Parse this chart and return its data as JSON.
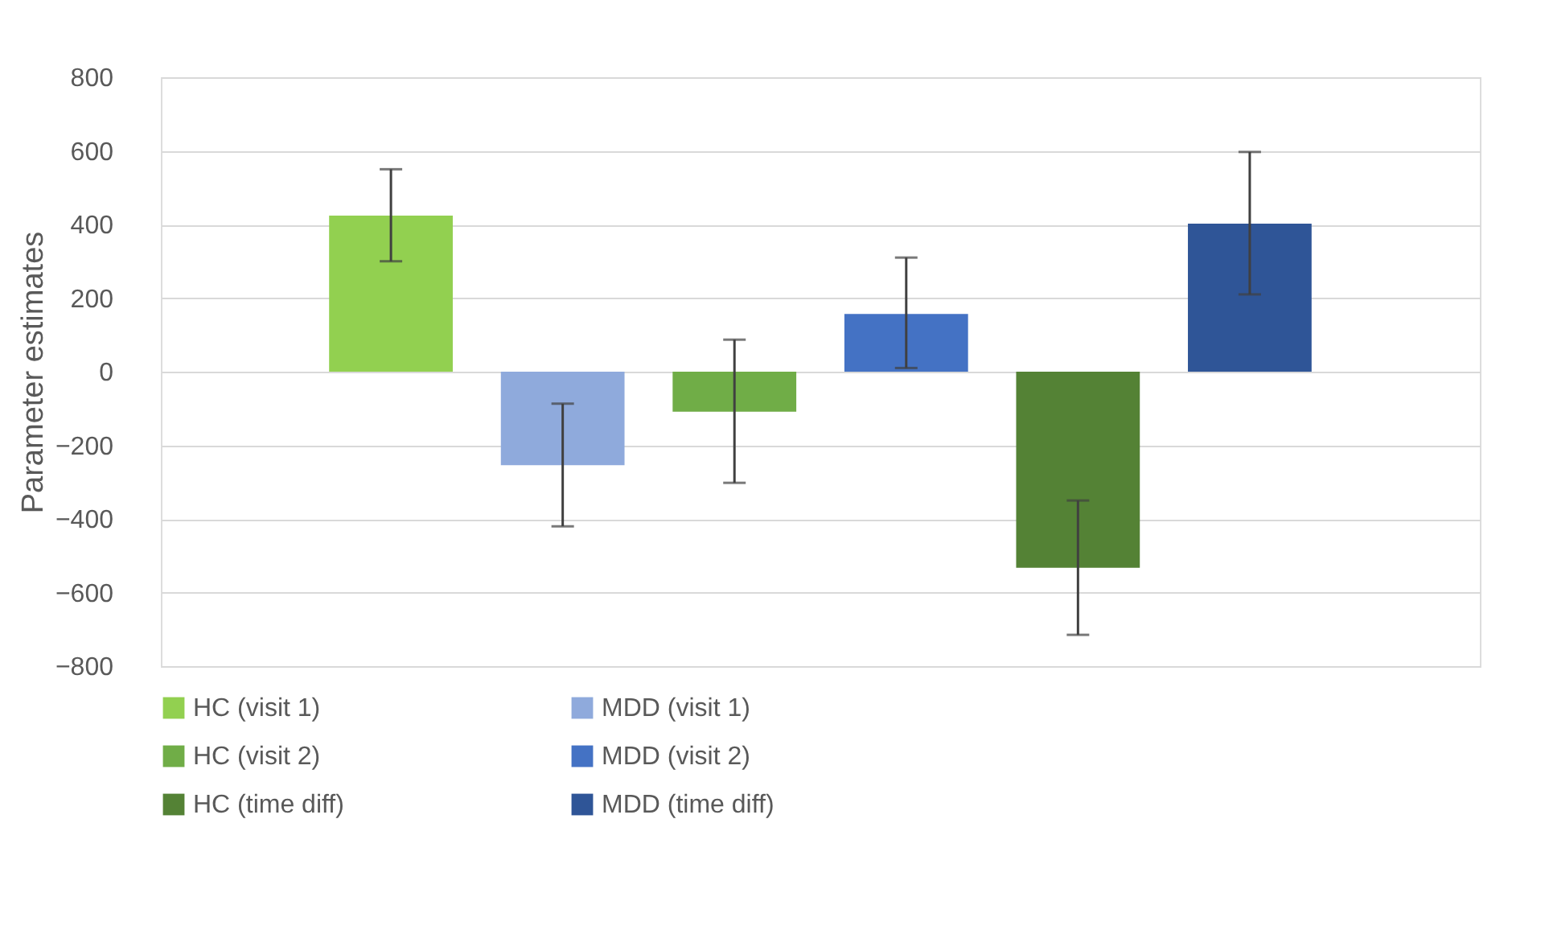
{
  "chart_data": {
    "type": "bar",
    "ylabel": "Parameter estimates",
    "categories": [
      null
    ],
    "series": [
      {
        "name": "HC (visit 1)",
        "color": "#92d050",
        "values": [
          424
        ],
        "errors": [
          [
            300,
            550
          ]
        ]
      },
      {
        "name": "MDD (visit 1)",
        "color": "#8faadc",
        "values": [
          -254
        ],
        "errors": [
          [
            -420,
            -87
          ]
        ]
      },
      {
        "name": "HC (visit 2)",
        "color": "#70ad47",
        "values": [
          -109
        ],
        "errors": [
          [
            -302,
            87
          ]
        ]
      },
      {
        "name": "MDD (visit 2)",
        "color": "#4472c4",
        "values": [
          157
        ],
        "errors": [
          [
            10,
            310
          ]
        ]
      },
      {
        "name": "HC (time diff)",
        "color": "#548235",
        "values": [
          -533
        ],
        "errors": [
          [
            -715,
            -350
          ]
        ]
      },
      {
        "name": "MDD (time diff)",
        "color": "#2f5597",
        "values": [
          402
        ],
        "errors": [
          [
            210,
            597
          ]
        ]
      }
    ],
    "ylim": [
      -800,
      800
    ],
    "yticks": [
      -800,
      -600,
      -400,
      -200,
      0,
      200,
      400,
      600,
      800
    ],
    "grid": "y",
    "legend": "bottom",
    "tick_labels": "y"
  }
}
